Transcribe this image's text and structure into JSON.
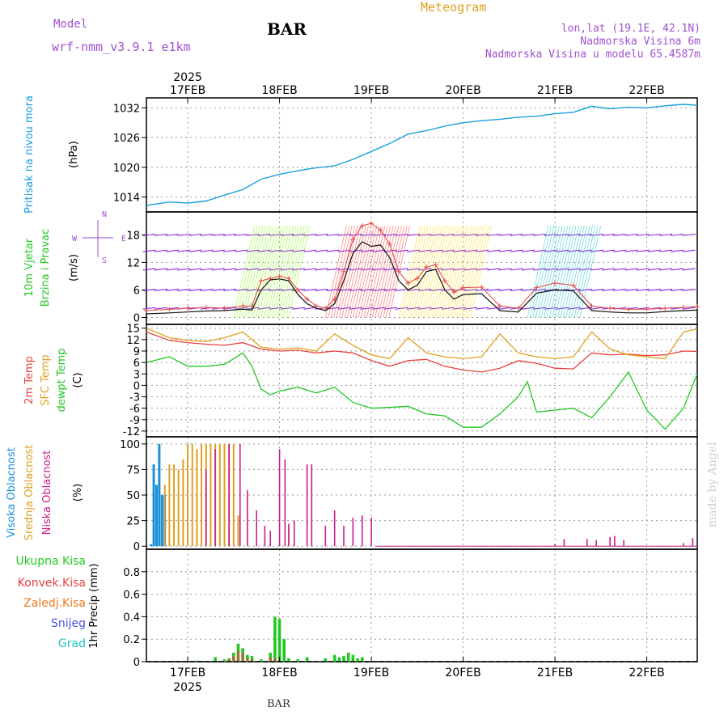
{
  "header": {
    "model_label": "Model",
    "model_name": "wrf-nmm_v3.9.1 e1km",
    "station": "BAR",
    "chart_title": "Meteogram",
    "location": "lon,lat (19.1E, 42.1N)",
    "elevation": "Nadmorska Visina 6m",
    "model_elevation": "Nadmorska Visina u modelu 65.4587m",
    "watermark": "made by Angel",
    "footer_station": "BAR"
  },
  "time_axis": {
    "year": "2025",
    "day_labels": [
      "17FEB",
      "18FEB",
      "19FEB",
      "20FEB",
      "21FEB",
      "22FEB"
    ],
    "day_positions": [
      1,
      2,
      3,
      4,
      5,
      6
    ],
    "range": [
      0.55,
      6.55
    ]
  },
  "colors": {
    "pressure": "#1aa0e0",
    "temp2m": "#e84040",
    "sfc_temp": "#e0a020",
    "dewpoint": "#22c822",
    "wind_speed_line": "#111111",
    "wind_gust": "#e85050",
    "high_cloud": "#1a90d8",
    "mid_cloud": "#e0a020",
    "low_cloud": "#c81e8c",
    "total_precip": "#22c822",
    "conv_precip": "#e84040",
    "frozen_precip": "#f07820",
    "snow": "#5050e0",
    "graupel": "#20c8c8",
    "wind_label": "#22c822",
    "compass": "#a050d0"
  },
  "chart_data": [
    {
      "type": "line",
      "ylabel": "(hPa)",
      "series_label": "Pritisak na nivou mora",
      "yticks": [
        1014,
        1020,
        1026,
        1032
      ],
      "ylim": [
        1011,
        1034
      ],
      "series": [
        {
          "name": "Pritisak na nivou mora",
          "x": [
            0.55,
            0.8,
            1.0,
            1.2,
            1.4,
            1.6,
            1.8,
            2.0,
            2.2,
            2.4,
            2.6,
            2.8,
            3.0,
            3.2,
            3.4,
            3.6,
            3.8,
            4.0,
            4.2,
            4.4,
            4.6,
            4.8,
            5.0,
            5.2,
            5.4,
            5.6,
            5.8,
            6.0,
            6.2,
            6.4,
            6.55
          ],
          "y": [
            1012.3,
            1013.0,
            1012.8,
            1013.2,
            1014.4,
            1015.5,
            1017.6,
            1018.6,
            1019.3,
            1019.9,
            1020.3,
            1021.6,
            1023.2,
            1024.8,
            1026.7,
            1027.4,
            1028.3,
            1029.0,
            1029.4,
            1029.7,
            1030.1,
            1030.3,
            1030.8,
            1031.1,
            1032.3,
            1031.8,
            1032.1,
            1032.0,
            1032.4,
            1032.7,
            1032.5
          ]
        }
      ]
    },
    {
      "type": "line",
      "ylabel": "(m/s)",
      "series_label_1": "10m Vjetar",
      "series_label_2": "Brzina i Pravac",
      "compass": {
        "n": "N",
        "e": "E",
        "s": "S",
        "w": "W"
      },
      "yticks": [
        0,
        6,
        12,
        18
      ],
      "ylim": [
        -1.5,
        23
      ],
      "series": [
        {
          "name": "Brzina i Pravac",
          "x": [
            0.55,
            0.8,
            1.0,
            1.2,
            1.4,
            1.6,
            1.7,
            1.8,
            1.9,
            2.0,
            2.1,
            2.2,
            2.3,
            2.4,
            2.5,
            2.6,
            2.7,
            2.8,
            2.9,
            3.0,
            3.1,
            3.2,
            3.3,
            3.4,
            3.5,
            3.6,
            3.7,
            3.8,
            3.9,
            4.0,
            4.2,
            4.4,
            4.6,
            4.8,
            5.0,
            5.2,
            5.4,
            5.6,
            5.8,
            6.0,
            6.2,
            6.4,
            6.55
          ],
          "y": [
            0.8,
            1.0,
            1.2,
            1.4,
            1.5,
            1.8,
            1.6,
            6.0,
            8.2,
            8.4,
            8.0,
            5.0,
            3.0,
            2.0,
            1.5,
            3.0,
            8.0,
            14.0,
            16.5,
            15.5,
            15.8,
            13.0,
            8.0,
            6.0,
            7.0,
            10.0,
            10.5,
            6.0,
            4.0,
            5.0,
            5.2,
            1.5,
            1.2,
            5.3,
            6.0,
            5.8,
            1.5,
            1.2,
            1.0,
            1.0,
            1.3,
            1.5,
            1.6
          ]
        },
        {
          "name": "gust",
          "x": [
            0.55,
            0.8,
            1.0,
            1.2,
            1.4,
            1.6,
            1.7,
            1.8,
            1.9,
            2.0,
            2.1,
            2.2,
            2.3,
            2.4,
            2.5,
            2.6,
            2.7,
            2.8,
            2.9,
            3.0,
            3.1,
            3.2,
            3.3,
            3.4,
            3.5,
            3.6,
            3.7,
            3.8,
            3.9,
            4.0,
            4.2,
            4.4,
            4.6,
            4.8,
            5.0,
            5.2,
            5.4,
            5.6,
            5.8,
            6.0,
            6.2,
            6.4,
            6.55
          ],
          "y": [
            1.5,
            1.8,
            2.0,
            2.2,
            2.0,
            2.5,
            2.5,
            8.0,
            8.5,
            9.0,
            8.5,
            6.0,
            4.0,
            2.5,
            2.0,
            4.0,
            10.0,
            17.0,
            20.0,
            20.5,
            19.0,
            16.0,
            10.0,
            7.5,
            8.5,
            11.0,
            11.5,
            8.0,
            5.5,
            6.5,
            6.6,
            2.5,
            2.0,
            6.5,
            7.5,
            7.0,
            2.5,
            2.0,
            1.8,
            1.8,
            2.0,
            2.2,
            2.4
          ]
        }
      ]
    },
    {
      "type": "line",
      "ylabel": "(C)",
      "series_label_1": "2m Temp",
      "series_label_2": "SFC Temp",
      "series_label_3": "dewpt Temp",
      "yticks": [
        -12,
        -9,
        -6,
        -3,
        0,
        3,
        6,
        9,
        12,
        15
      ],
      "ylim": [
        -13.5,
        16
      ],
      "series": [
        {
          "name": "2m Temp",
          "x": [
            0.55,
            0.8,
            1.0,
            1.2,
            1.4,
            1.6,
            1.8,
            2.0,
            2.2,
            2.4,
            2.6,
            2.8,
            3.0,
            3.2,
            3.4,
            3.6,
            3.8,
            4.0,
            4.2,
            4.4,
            4.6,
            4.8,
            5.0,
            5.2,
            5.4,
            5.6,
            5.8,
            6.0,
            6.2,
            6.4,
            6.55
          ],
          "y": [
            14.0,
            11.8,
            11.2,
            10.8,
            10.5,
            11.2,
            9.5,
            9.0,
            9.2,
            8.5,
            9.0,
            8.5,
            6.5,
            5.0,
            6.5,
            6.8,
            5.0,
            4.0,
            3.5,
            4.5,
            6.5,
            5.8,
            4.5,
            4.3,
            8.5,
            8.0,
            8.2,
            7.8,
            8.0,
            9.0,
            8.9
          ]
        },
        {
          "name": "SFC Temp",
          "x": [
            0.55,
            0.8,
            1.0,
            1.2,
            1.4,
            1.6,
            1.8,
            2.0,
            2.2,
            2.4,
            2.6,
            2.8,
            3.0,
            3.2,
            3.4,
            3.6,
            3.8,
            4.0,
            4.2,
            4.4,
            4.6,
            4.8,
            5.0,
            5.2,
            5.4,
            5.6,
            5.8,
            6.0,
            6.2,
            6.4,
            6.55
          ],
          "y": [
            15.0,
            12.5,
            11.8,
            11.5,
            12.5,
            14.0,
            10.0,
            9.5,
            9.8,
            9.0,
            13.5,
            10.5,
            8.0,
            7.0,
            12.5,
            8.5,
            7.5,
            7.0,
            7.5,
            13.5,
            8.5,
            7.5,
            7.0,
            7.5,
            14.0,
            9.5,
            8.0,
            7.5,
            7.0,
            14.0,
            14.8
          ]
        },
        {
          "name": "dewpt Temp",
          "x": [
            0.55,
            0.8,
            1.0,
            1.2,
            1.4,
            1.6,
            1.7,
            1.8,
            1.9,
            2.0,
            2.2,
            2.4,
            2.6,
            2.8,
            3.0,
            3.2,
            3.4,
            3.6,
            3.8,
            4.0,
            4.2,
            4.4,
            4.6,
            4.7,
            4.8,
            5.0,
            5.2,
            5.4,
            5.6,
            5.8,
            6.0,
            6.2,
            6.4,
            6.55
          ],
          "y": [
            6.0,
            7.5,
            5.0,
            5.0,
            5.5,
            8.5,
            5.0,
            -1.0,
            -2.5,
            -1.5,
            -0.5,
            -2.0,
            -0.5,
            -4.5,
            -6.0,
            -5.8,
            -5.5,
            -7.5,
            -8.0,
            -11.0,
            -11.0,
            -7.5,
            -3.0,
            1.0,
            -7.0,
            -6.5,
            -6.0,
            -8.5,
            -3.0,
            3.5,
            -6.5,
            -11.5,
            -6.0,
            3.0
          ]
        }
      ]
    },
    {
      "type": "bar",
      "ylabel": "(%)",
      "series_label_1": "Visoka Oblacnost",
      "series_label_2": "Srednja Oblacnost",
      "series_label_3": "Niska Oblacnost",
      "yticks": [
        0,
        25,
        50,
        75,
        100
      ],
      "ylim": [
        -3,
        107
      ],
      "series": [
        {
          "name": "Visoka Oblacnost",
          "x": [
            0.6,
            0.63,
            0.66,
            0.69,
            0.72,
            0.75,
            0.78
          ],
          "y": [
            2,
            80,
            60,
            100,
            50,
            50,
            0
          ]
        },
        {
          "name": "Srednja Oblacnost",
          "x": [
            0.75,
            0.8,
            0.85,
            0.9,
            0.95,
            1.0,
            1.05,
            1.1,
            1.15,
            1.2,
            1.25,
            1.3,
            1.35,
            1.4,
            1.45,
            1.5,
            1.55,
            1.6,
            2.1
          ],
          "y": [
            60,
            80,
            80,
            75,
            85,
            100,
            100,
            95,
            100,
            100,
            100,
            100,
            100,
            100,
            100,
            100,
            30,
            0,
            18
          ]
        },
        {
          "name": "Niska Oblacnost",
          "x": [
            1.2,
            1.3,
            1.45,
            1.57,
            1.65,
            1.75,
            1.84,
            1.9,
            2.0,
            2.06,
            2.1,
            2.16,
            2.3,
            2.35,
            2.5,
            2.6,
            2.7,
            2.8,
            2.9,
            3.0,
            5.0,
            5.1,
            5.35,
            5.45,
            5.6,
            5.65,
            5.75,
            6.4,
            6.5
          ],
          "y": [
            75,
            95,
            100,
            100,
            55,
            35,
            20,
            15,
            95,
            85,
            22,
            25,
            80,
            80,
            20,
            35,
            20,
            28,
            30,
            28,
            2,
            7,
            7,
            6,
            9,
            10,
            6,
            3,
            8
          ]
        }
      ]
    },
    {
      "type": "bar",
      "ylabel": "1hr Precip (mm)",
      "legend": [
        "Ukupna Kisa",
        "Konvek.Kisa",
        "Zaledj.Kisa",
        "Snijeg",
        "Grad"
      ],
      "yticks": [
        0,
        0.2,
        0.4,
        0.6,
        0.8
      ],
      "ytick_labels": [
        "0",
        "0.2",
        "0.4",
        "0.6",
        "0.8"
      ],
      "ylim": [
        0,
        1.0
      ],
      "series": [
        {
          "name": "Ukupna Kisa",
          "x": [
            1.1,
            1.3,
            1.4,
            1.45,
            1.5,
            1.55,
            1.6,
            1.65,
            1.7,
            1.8,
            1.9,
            1.95,
            2.0,
            2.05,
            2.1,
            2.2,
            2.3,
            2.5,
            2.6,
            2.65,
            2.7,
            2.75,
            2.8,
            2.85,
            2.9
          ],
          "y": [
            0.01,
            0.04,
            0.02,
            0.03,
            0.08,
            0.16,
            0.12,
            0.06,
            0.05,
            0.02,
            0.08,
            0.4,
            0.38,
            0.2,
            0.03,
            0.02,
            0.04,
            0.03,
            0.06,
            0.04,
            0.05,
            0.08,
            0.06,
            0.03,
            0.04
          ]
        },
        {
          "name": "Konvek.Kisa",
          "x": [
            1.45,
            1.5,
            1.55,
            1.6,
            1.65,
            1.7,
            1.9,
            1.95
          ],
          "y": [
            0.02,
            0.05,
            0.1,
            0.08,
            0.03,
            0.02,
            0.04,
            0.03
          ]
        }
      ]
    }
  ]
}
